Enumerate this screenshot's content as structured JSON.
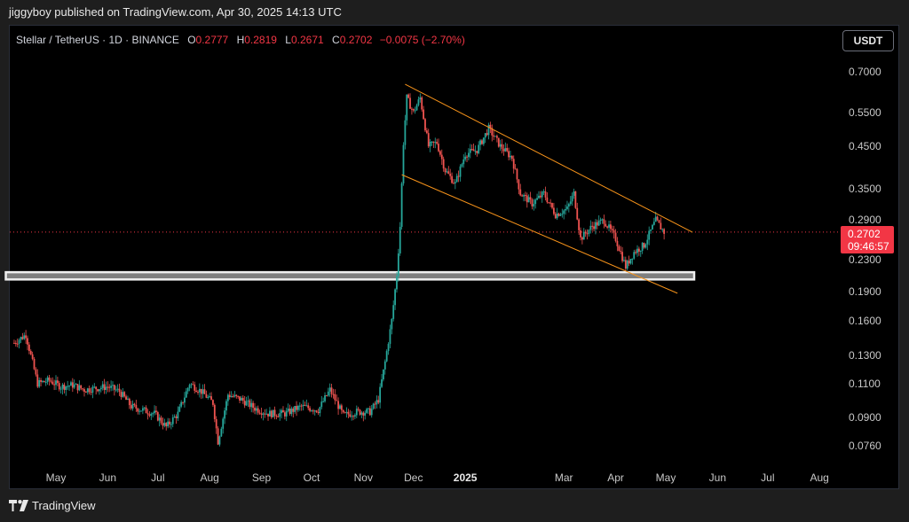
{
  "header": {
    "published": "jiggyboy published on TradingView.com, Apr 30, 2025 14:13 UTC"
  },
  "legend": {
    "symbol": "Stellar / TetherUS · 1D · BINANCE",
    "o_label": "O",
    "o_value": "0.2777",
    "h_label": "H",
    "h_value": "0.2819",
    "l_label": "L",
    "l_value": "0.2671",
    "c_label": "C",
    "c_value": "0.2702",
    "change": "−0.0075 (−2.70%)"
  },
  "currency_button": "USDT",
  "price_badge": {
    "price": "0.2702",
    "countdown": "09:46:57"
  },
  "footer": {
    "brand": "TradingView"
  },
  "colors": {
    "up": "#26a69a",
    "down": "#ef5350",
    "channel": "#f7931a",
    "badge": "#f23645",
    "background": "#000000"
  },
  "chart_data": {
    "type": "candlestick",
    "y_scale": "log",
    "ylim": [
      0.07,
      0.75
    ],
    "y_ticks": [
      "0.7000",
      "0.5500",
      "0.4500",
      "0.3500",
      "0.2900",
      "0.2300",
      "0.1900",
      "0.1600",
      "0.1300",
      "0.1100",
      "0.0900",
      "0.0760"
    ],
    "y_tick_values": [
      0.7,
      0.55,
      0.45,
      0.35,
      0.29,
      0.23,
      0.19,
      0.16,
      0.13,
      0.11,
      0.09,
      0.076
    ],
    "x_ticks": [
      "May",
      "Jun",
      "Jul",
      "Aug",
      "Sep",
      "Oct",
      "Nov",
      "Dec",
      "2025",
      "Mar",
      "Apr",
      "May",
      "Jun",
      "Jul",
      "Aug"
    ],
    "x_tick_dates": [
      "2024-05-01",
      "2024-06-01",
      "2024-07-01",
      "2024-08-01",
      "2024-09-01",
      "2024-10-01",
      "2024-11-01",
      "2024-12-01",
      "2025-01-01",
      "2025-03-01",
      "2025-04-01",
      "2025-05-01",
      "2025-06-01",
      "2025-07-01",
      "2025-08-01"
    ],
    "year_tick": "2025",
    "last_price": 0.2702,
    "price_path": [
      [
        "2024-04-06",
        0.14
      ],
      [
        "2024-04-13",
        0.147
      ],
      [
        "2024-04-20",
        0.11
      ],
      [
        "2024-04-27",
        0.112
      ],
      [
        "2024-05-04",
        0.108
      ],
      [
        "2024-05-11",
        0.109
      ],
      [
        "2024-05-18",
        0.106
      ],
      [
        "2024-05-25",
        0.107
      ],
      [
        "2024-06-01",
        0.108
      ],
      [
        "2024-06-08",
        0.105
      ],
      [
        "2024-06-15",
        0.096
      ],
      [
        "2024-06-22",
        0.094
      ],
      [
        "2024-06-29",
        0.092
      ],
      [
        "2024-07-06",
        0.085
      ],
      [
        "2024-07-13",
        0.092
      ],
      [
        "2024-07-20",
        0.11
      ],
      [
        "2024-07-27",
        0.105
      ],
      [
        "2024-08-03",
        0.098
      ],
      [
        "2024-08-06",
        0.078
      ],
      [
        "2024-08-12",
        0.103
      ],
      [
        "2024-08-20",
        0.1
      ],
      [
        "2024-08-28",
        0.095
      ],
      [
        "2024-09-05",
        0.092
      ],
      [
        "2024-09-15",
        0.092
      ],
      [
        "2024-09-25",
        0.096
      ],
      [
        "2024-10-05",
        0.094
      ],
      [
        "2024-10-12",
        0.106
      ],
      [
        "2024-10-20",
        0.091
      ],
      [
        "2024-10-28",
        0.093
      ],
      [
        "2024-11-05",
        0.093
      ],
      [
        "2024-11-10",
        0.1
      ],
      [
        "2024-11-14",
        0.125
      ],
      [
        "2024-11-18",
        0.16
      ],
      [
        "2024-11-21",
        0.21
      ],
      [
        "2024-11-23",
        0.28
      ],
      [
        "2024-11-25",
        0.46
      ],
      [
        "2024-11-27",
        0.6
      ],
      [
        "2024-12-01",
        0.55
      ],
      [
        "2024-12-05",
        0.6
      ],
      [
        "2024-12-10",
        0.45
      ],
      [
        "2024-12-15",
        0.46
      ],
      [
        "2024-12-20",
        0.39
      ],
      [
        "2024-12-26",
        0.36
      ],
      [
        "2025-01-01",
        0.43
      ],
      [
        "2025-01-08",
        0.44
      ],
      [
        "2025-01-15",
        0.5
      ],
      [
        "2025-01-22",
        0.45
      ],
      [
        "2025-01-29",
        0.42
      ],
      [
        "2025-02-03",
        0.34
      ],
      [
        "2025-02-10",
        0.32
      ],
      [
        "2025-02-17",
        0.34
      ],
      [
        "2025-02-24",
        0.3
      ],
      [
        "2025-03-03",
        0.31
      ],
      [
        "2025-03-07",
        0.34
      ],
      [
        "2025-03-11",
        0.26
      ],
      [
        "2025-03-18",
        0.28
      ],
      [
        "2025-03-25",
        0.29
      ],
      [
        "2025-04-01",
        0.26
      ],
      [
        "2025-04-07",
        0.22
      ],
      [
        "2025-04-12",
        0.24
      ],
      [
        "2025-04-18",
        0.25
      ],
      [
        "2025-04-25",
        0.29
      ],
      [
        "2025-04-30",
        0.2702
      ]
    ],
    "annotations": {
      "descending_channel": {
        "upper": [
          [
            "2024-11-26",
            0.65
          ],
          [
            "2025-05-17",
            0.27
          ]
        ],
        "lower": [
          [
            "2024-11-24",
            0.38
          ],
          [
            "2025-05-08",
            0.188
          ]
        ]
      },
      "support_zone": {
        "from": "2024-04-01",
        "to": "2025-05-18",
        "low": 0.204,
        "high": 0.213
      },
      "last_price_line": 0.2702
    }
  }
}
